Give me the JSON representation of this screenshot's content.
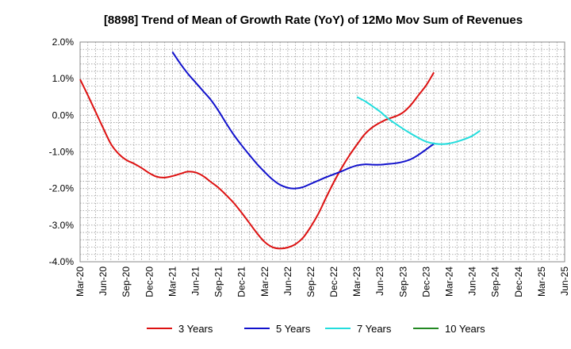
{
  "chart_data": {
    "type": "line",
    "title": "[8898]  Trend of Mean of Growth Rate (YoY) of 12Mo Mov Sum of Revenues",
    "xlabel": "",
    "ylabel": "",
    "ylim": [
      -4.0,
      2.0
    ],
    "y_ticks": [
      2.0,
      1.0,
      0.0,
      -1.0,
      -2.0,
      -3.0,
      -4.0
    ],
    "y_tick_labels": [
      "2.0%",
      "1.0%",
      "0.0%",
      "-1.0%",
      "-2.0%",
      "-3.0%",
      "-4.0%"
    ],
    "x_tick_labels": [
      "Mar-20",
      "Jun-20",
      "Sep-20",
      "Dec-20",
      "Mar-21",
      "Jun-21",
      "Sep-21",
      "Dec-21",
      "Mar-22",
      "Jun-22",
      "Sep-22",
      "Dec-22",
      "Mar-23",
      "Jun-23",
      "Sep-23",
      "Dec-23",
      "Mar-24",
      "Jun-24",
      "Sep-24",
      "Dec-24",
      "Mar-25",
      "Jun-25"
    ],
    "grid": true,
    "legend_position": "bottom",
    "series": [
      {
        "name": "3 Years",
        "color": "#dd1111",
        "start_index": 0,
        "values": [
          0.98,
          0.55,
          0.1,
          -0.35,
          -0.78,
          -1.05,
          -1.22,
          -1.32,
          -1.44,
          -1.58,
          -1.68,
          -1.7,
          -1.66,
          -1.6,
          -1.54,
          -1.56,
          -1.66,
          -1.82,
          -1.98,
          -2.18,
          -2.4,
          -2.66,
          -2.94,
          -3.22,
          -3.46,
          -3.6,
          -3.64,
          -3.61,
          -3.52,
          -3.34,
          -3.04,
          -2.68,
          -2.24,
          -1.82,
          -1.44,
          -1.1,
          -0.8,
          -0.52,
          -0.33,
          -0.2,
          -0.1,
          -0.03,
          0.08,
          0.28,
          0.55,
          0.82,
          1.17
        ]
      },
      {
        "name": "5 Years",
        "color": "#1111cc",
        "start_index": 12,
        "values": [
          1.73,
          1.42,
          1.14,
          0.9,
          0.66,
          0.42,
          0.12,
          -0.22,
          -0.54,
          -0.82,
          -1.08,
          -1.33,
          -1.55,
          -1.75,
          -1.9,
          -1.98,
          -2.0,
          -1.96,
          -1.87,
          -1.78,
          -1.69,
          -1.61,
          -1.53,
          -1.44,
          -1.37,
          -1.34,
          -1.35,
          -1.35,
          -1.33,
          -1.31,
          -1.27,
          -1.2,
          -1.08,
          -0.93,
          -0.78
        ]
      },
      {
        "name": "7 Years",
        "color": "#22dddd",
        "start_index": 36,
        "values": [
          0.5,
          0.39,
          0.25,
          0.1,
          -0.08,
          -0.23,
          -0.37,
          -0.5,
          -0.62,
          -0.72,
          -0.77,
          -0.79,
          -0.77,
          -0.72,
          -0.65,
          -0.56,
          -0.42
        ]
      },
      {
        "name": "10 Years",
        "color": "#228822",
        "start_index": 0,
        "values": []
      }
    ]
  }
}
